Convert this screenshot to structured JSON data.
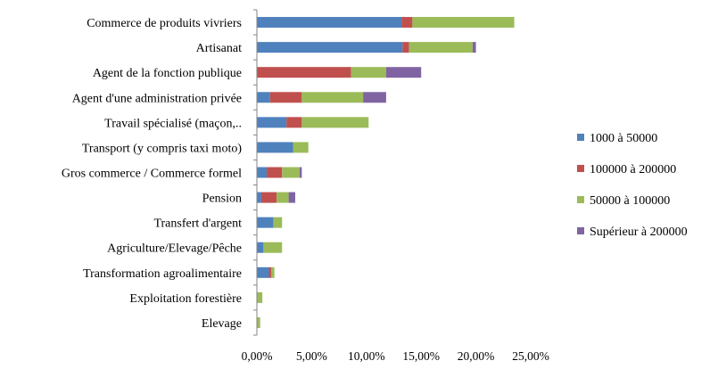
{
  "chart_data": {
    "type": "bar",
    "orientation": "horizontal",
    "stacked": true,
    "categories": [
      "Commerce de produits vivriers",
      "Artisanat",
      "Agent de la fonction publique",
      "Agent d'une administration privée",
      "Travail spécialisé (maçon,..",
      "Transport (y compris taxi moto)",
      "Gros commerce / Commerce formel",
      "Pension",
      "Transfert d'argent",
      "Agriculture/Elevage/Pêche",
      "Transformation agroalimentaire",
      "Exploitation forestière",
      "Elevage"
    ],
    "series": [
      {
        "name": "1000 à 50000",
        "color": "#4F81BD",
        "values": [
          13.2,
          13.3,
          0.0,
          1.2,
          2.7,
          3.3,
          0.9,
          0.4,
          1.5,
          0.6,
          1.1,
          0.0,
          0.0
        ]
      },
      {
        "name": "100000 à 200000",
        "color": "#C0504D",
        "values": [
          1.0,
          0.6,
          8.6,
          2.9,
          1.4,
          0.0,
          1.4,
          1.4,
          0.0,
          0.0,
          0.2,
          0.0,
          0.0
        ]
      },
      {
        "name": "50000 à 100000",
        "color": "#9BBB59",
        "values": [
          9.3,
          5.8,
          3.2,
          5.6,
          6.1,
          1.4,
          1.6,
          1.1,
          0.8,
          1.7,
          0.3,
          0.5,
          0.3
        ]
      },
      {
        "name": "Supérieur à 200000",
        "color": "#8064A2",
        "values": [
          0.0,
          0.3,
          3.2,
          2.1,
          0.0,
          0.0,
          0.2,
          0.6,
          0.0,
          0.0,
          0.0,
          0.0,
          0.0
        ]
      }
    ],
    "x_ticks": [
      "0,00%",
      "5,00%",
      "10,00%",
      "15,00%",
      "20,00%",
      "25,00%"
    ],
    "xlim": [
      0,
      25
    ],
    "legend_position": "right",
    "grid": false
  }
}
